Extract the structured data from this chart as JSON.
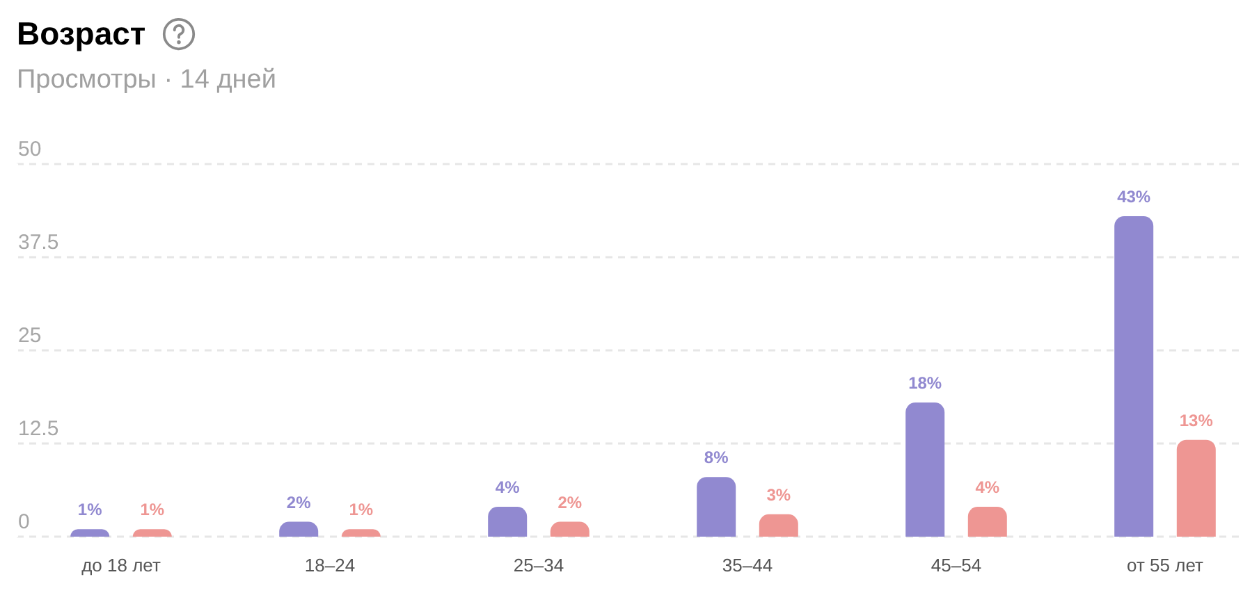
{
  "chart_data": {
    "type": "bar",
    "title": "Возраст",
    "subtitle": "Просмотры · 14 дней",
    "categories": [
      "до 18 лет",
      "18–24",
      "25–34",
      "35–44",
      "45–54",
      "от 55 лет"
    ],
    "series": [
      {
        "color": "#9189d0",
        "values": [
          1,
          2,
          4,
          8,
          18,
          43
        ],
        "value_labels": [
          "1%",
          "2%",
          "4%",
          "8%",
          "18%",
          "43%"
        ]
      },
      {
        "color": "#ee9693",
        "values": [
          1,
          1,
          2,
          3,
          4,
          13
        ],
        "value_labels": [
          "1%",
          "1%",
          "2%",
          "3%",
          "4%",
          "13%"
        ]
      }
    ],
    "ylim": [
      0,
      50
    ],
    "yticks": [
      0,
      12.5,
      25,
      37.5,
      50
    ],
    "grid": "y"
  }
}
